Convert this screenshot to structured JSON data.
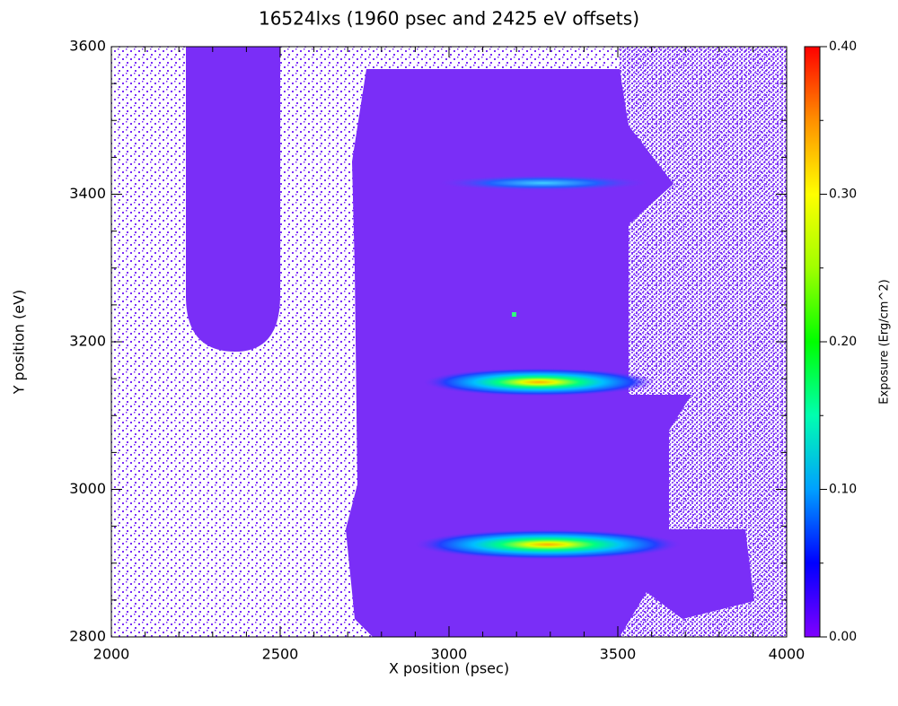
{
  "chart_data": {
    "type": "heatmap",
    "title": "16524lxs (1960 psec and 2425 eV offsets)",
    "x_label": "X position (psec)",
    "y_label": "Y position (eV)",
    "xlim": [
      2000,
      4000
    ],
    "ylim": [
      2800,
      3600
    ],
    "xticks": [
      2000,
      2500,
      3000,
      3500,
      4000
    ],
    "yticks": [
      2800,
      3000,
      3200,
      3400,
      3600
    ],
    "xminorticks": [
      2100,
      2200,
      2300,
      2400,
      2600,
      2700,
      2800,
      2900,
      3100,
      3200,
      3300,
      3400,
      3600,
      3700,
      3800,
      3900
    ],
    "yminorticks": [
      2850,
      2900,
      2950,
      3050,
      3100,
      3150,
      3250,
      3300,
      3350,
      3450,
      3500,
      3550
    ],
    "colorbar": {
      "label": "Exposure (Erg/cm^2)",
      "lim": [
        0,
        0.4
      ],
      "ticks": [
        {
          "value": 0,
          "label": "0.00"
        },
        {
          "value": 0.1,
          "label": "0.10"
        },
        {
          "value": 0.2,
          "label": "0.20"
        },
        {
          "value": 0.3,
          "label": "0.30"
        },
        {
          "value": 0.4,
          "label": "0.40"
        }
      ],
      "minorticks": [
        0.05,
        0.15,
        0.25,
        0.35
      ],
      "colors": [
        "#8000ff",
        "#0000ff",
        "#00a0ff",
        "#00ffb0",
        "#00ff00",
        "#a0ff00",
        "#ffff00",
        "#ff9000",
        "#ff0000"
      ]
    }
  }
}
